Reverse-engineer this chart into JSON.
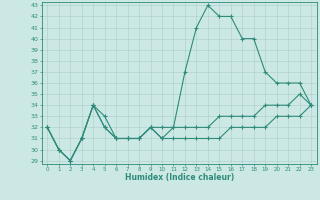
{
  "xlabel": "Humidex (Indice chaleur)",
  "x": [
    0,
    1,
    2,
    3,
    4,
    5,
    6,
    7,
    8,
    9,
    10,
    11,
    12,
    13,
    14,
    15,
    16,
    17,
    18,
    19,
    20,
    21,
    22,
    23
  ],
  "line1": [
    32,
    30,
    29,
    31,
    34,
    33,
    31,
    31,
    31,
    32,
    32,
    32,
    37,
    41,
    43,
    42,
    42,
    40,
    40,
    37,
    36,
    36,
    36,
    34
  ],
  "line2": [
    32,
    30,
    29,
    31,
    34,
    32,
    31,
    31,
    31,
    32,
    31,
    32,
    32,
    32,
    32,
    33,
    33,
    33,
    33,
    34,
    34,
    34,
    35,
    34
  ],
  "line3": [
    32,
    30,
    29,
    31,
    34,
    32,
    31,
    31,
    31,
    32,
    31,
    31,
    31,
    31,
    31,
    31,
    32,
    32,
    32,
    32,
    33,
    33,
    33,
    34
  ],
  "ylim": [
    29,
    43
  ],
  "xlim": [
    0,
    23
  ],
  "yticks": [
    29,
    30,
    31,
    32,
    33,
    34,
    35,
    36,
    37,
    38,
    39,
    40,
    41,
    42,
    43
  ],
  "xticks": [
    0,
    1,
    2,
    3,
    4,
    5,
    6,
    7,
    8,
    9,
    10,
    11,
    12,
    13,
    14,
    15,
    16,
    17,
    18,
    19,
    20,
    21,
    22,
    23
  ],
  "line_color": "#2e8b7a",
  "bg_color": "#cce8e4",
  "grid_color": "#aacccc"
}
